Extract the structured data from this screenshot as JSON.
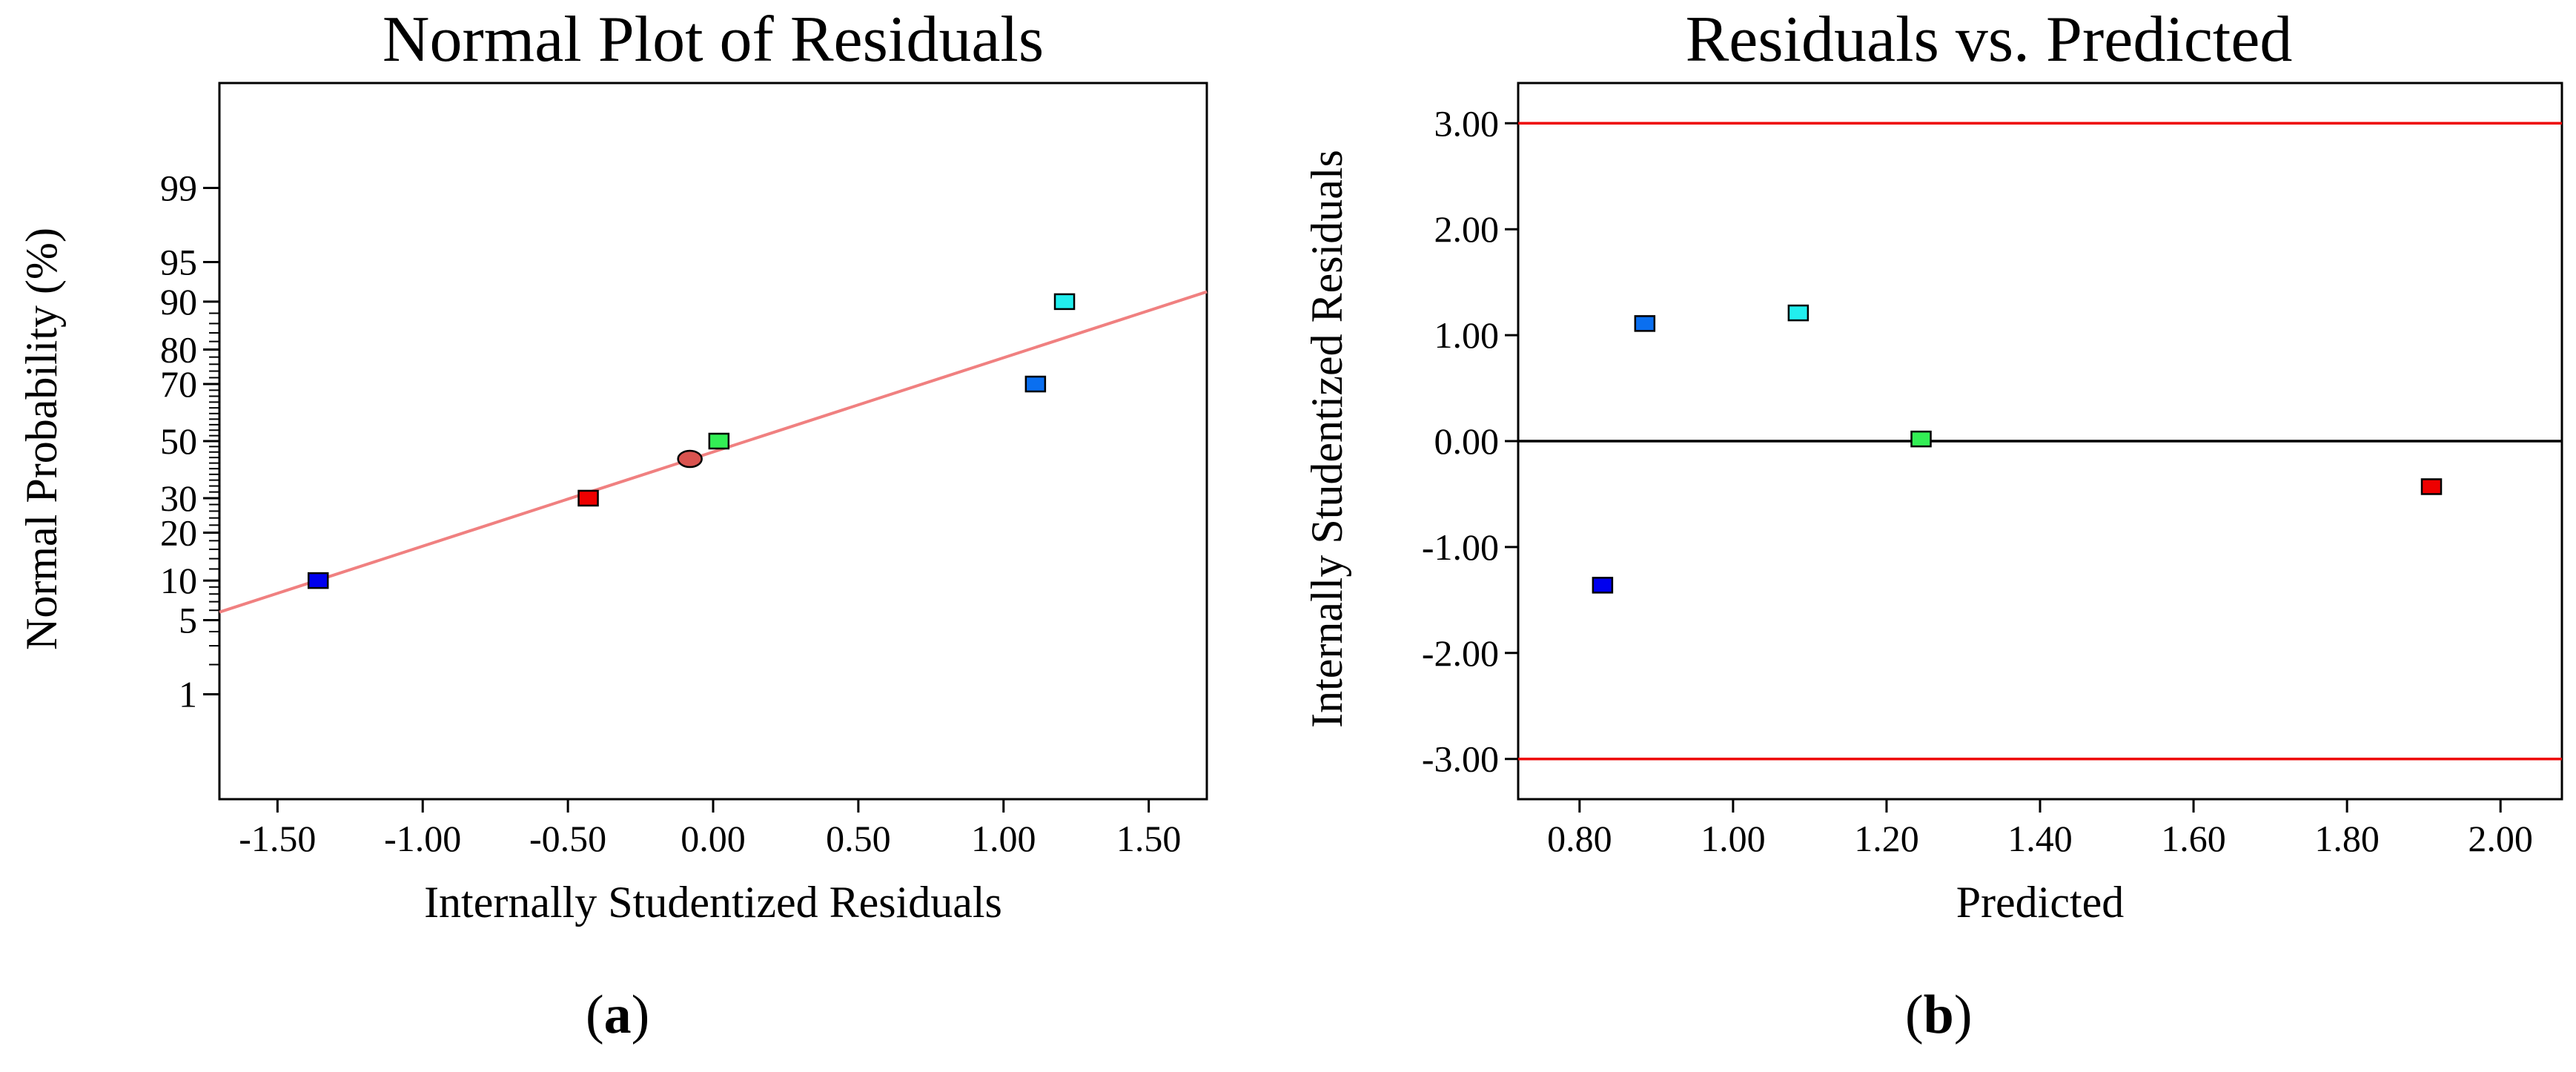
{
  "chart_data": [
    {
      "type": "scatter",
      "panel": "a",
      "title": "Normal Plot of Residuals",
      "xlabel": "Internally Studentized Residuals",
      "ylabel": "Normal Probability (%)",
      "xlim": [
        -1.7,
        1.7
      ],
      "y_scale": "normal-probability",
      "ylim_percent": [
        0.05,
        99.95
      ],
      "x_ticks": [
        {
          "value": -1.5,
          "label": "-1.50"
        },
        {
          "value": -1.0,
          "label": "-1.00"
        },
        {
          "value": -0.5,
          "label": "-0.50"
        },
        {
          "value": 0.0,
          "label": "0.00"
        },
        {
          "value": 0.5,
          "label": "0.50"
        },
        {
          "value": 1.0,
          "label": "1.00"
        },
        {
          "value": 1.5,
          "label": "1.50"
        }
      ],
      "y_ticks": [
        {
          "value": 1,
          "label": "1"
        },
        {
          "value": 5,
          "label": "5"
        },
        {
          "value": 10,
          "label": "10"
        },
        {
          "value": 20,
          "label": "20"
        },
        {
          "value": 30,
          "label": "30"
        },
        {
          "value": 50,
          "label": "50"
        },
        {
          "value": 70,
          "label": "70"
        },
        {
          "value": 80,
          "label": "80"
        },
        {
          "value": 90,
          "label": "90"
        },
        {
          "value": 95,
          "label": "95"
        },
        {
          "value": 99,
          "label": "99"
        }
      ],
      "minor_y_ticks_percent": [
        2,
        3,
        4,
        6,
        7,
        8,
        9,
        12,
        14,
        16,
        18,
        22,
        24,
        26,
        28,
        32,
        34,
        36,
        38,
        40,
        42,
        44,
        46,
        48,
        52,
        54,
        56,
        58,
        60,
        62,
        64,
        66,
        68,
        72,
        74,
        76,
        78,
        82,
        84,
        86,
        88
      ],
      "fit_line": {
        "color": "#f08080",
        "points": [
          {
            "x": -1.7,
            "p": 5.8
          },
          {
            "x": 1.7,
            "p": 91.5
          }
        ]
      },
      "points": [
        {
          "x": -1.36,
          "p": 10,
          "color": "#0000ee",
          "marker": "square"
        },
        {
          "x": -0.43,
          "p": 30,
          "color": "#ee0000",
          "marker": "square"
        },
        {
          "x": -0.08,
          "p": 43.5,
          "color": "#d9534f",
          "marker": "ellipse"
        },
        {
          "x": 0.02,
          "p": 50,
          "color": "#33ee55",
          "marker": "square"
        },
        {
          "x": 1.11,
          "p": 70,
          "color": "#0a6ff0",
          "marker": "square"
        },
        {
          "x": 1.21,
          "p": 90,
          "color": "#22eeee",
          "marker": "square"
        }
      ],
      "caption": "a"
    },
    {
      "type": "scatter",
      "panel": "b",
      "title": "Residuals vs. Predicted",
      "xlabel": "Predicted",
      "ylabel": "Internally Studentized Residuals",
      "xlim": [
        0.72,
        2.08
      ],
      "ylim": [
        -3.38,
        3.38
      ],
      "x_ticks": [
        {
          "value": 0.8,
          "label": "0.80"
        },
        {
          "value": 1.0,
          "label": "1.00"
        },
        {
          "value": 1.2,
          "label": "1.20"
        },
        {
          "value": 1.4,
          "label": "1.40"
        },
        {
          "value": 1.6,
          "label": "1.60"
        },
        {
          "value": 1.8,
          "label": "1.80"
        },
        {
          "value": 2.0,
          "label": "2.00"
        }
      ],
      "y_ticks": [
        {
          "value": 3,
          "label": "3.00"
        },
        {
          "value": 2,
          "label": "2.00"
        },
        {
          "value": 1,
          "label": "1.00"
        },
        {
          "value": 0,
          "label": "0.00"
        },
        {
          "value": -1,
          "label": "-1.00"
        },
        {
          "value": -2,
          "label": "-2.00"
        },
        {
          "value": -3,
          "label": "-3.00"
        }
      ],
      "reference_lines": [
        {
          "y": 3.0,
          "color": "#ee0000"
        },
        {
          "y": 0.0,
          "color": "#000000"
        },
        {
          "y": -3.0,
          "color": "#ee0000"
        }
      ],
      "points": [
        {
          "x": 0.83,
          "y": -1.36,
          "color": "#0000ee",
          "marker": "square"
        },
        {
          "x": 0.885,
          "y": 1.11,
          "color": "#0a6ff0",
          "marker": "square"
        },
        {
          "x": 1.085,
          "y": 1.21,
          "color": "#22eeee",
          "marker": "square"
        },
        {
          "x": 1.245,
          "y": 0.02,
          "color": "#33ee55",
          "marker": "square"
        },
        {
          "x": 1.91,
          "y": -0.43,
          "color": "#ee0000",
          "marker": "square"
        }
      ],
      "caption": "b"
    }
  ],
  "captions": {
    "a": "a",
    "b": "b",
    "open_paren": "(",
    "close_paren": ")"
  }
}
